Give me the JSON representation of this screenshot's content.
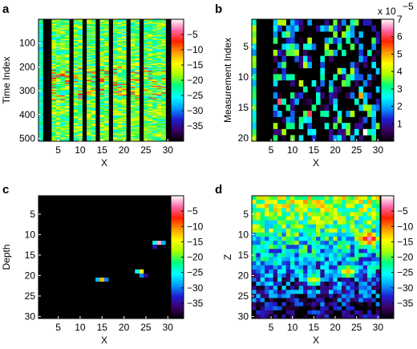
{
  "colormap": {
    "name": "jet-like with black low end",
    "stops": [
      "#000000",
      "#3d0066",
      "#1e1ed2",
      "#00a0ff",
      "#00ffff",
      "#00ff7f",
      "#a8ff00",
      "#ffff00",
      "#ff9a00",
      "#ff2000",
      "#ff66aa",
      "#ffffff"
    ]
  },
  "chart_data": [
    {
      "type": "heatmap",
      "panel": "a",
      "xlabel": "X",
      "ylabel": "Time Index",
      "xlim": [
        0.5,
        30.5
      ],
      "ylim": [
        0,
        512
      ],
      "x_ticks": [
        5,
        10,
        15,
        20,
        25,
        30
      ],
      "y_ticks": [
        100,
        200,
        300,
        400,
        500
      ],
      "colorbar": {
        "ticks": [
          -5,
          -10,
          -15,
          -20,
          -25,
          -30,
          -35
        ],
        "range": [
          -40,
          0
        ],
        "multiplier": ""
      },
      "description_values": "Values near -40 (black) for columns 1-3; most other columns show streaked noise around -25 to -15 with bright streaks near rows 210-330",
      "active_columns": [
        1,
        4,
        5,
        6,
        7,
        9,
        10,
        12,
        13,
        15,
        16,
        18,
        19,
        20,
        22,
        23,
        25,
        26,
        27,
        28,
        29
      ]
    },
    {
      "type": "heatmap",
      "panel": "b",
      "xlabel": "X",
      "ylabel": "Measurement Index",
      "xlim": [
        0.5,
        30.5
      ],
      "ylim": [
        0.5,
        20.5
      ],
      "x_ticks": [
        5,
        10,
        15,
        20,
        25,
        30
      ],
      "y_ticks": [
        5,
        10,
        15,
        20
      ],
      "colorbar": {
        "ticks": [
          7,
          6,
          5,
          4,
          3,
          2,
          1
        ],
        "range": [
          0,
          7
        ],
        "multiplier": "x 10",
        "exponent": "−5"
      },
      "cells_note": "Sparse colored cells; mostly dark background",
      "highlighted_cells": [
        {
          "x": 7,
          "y": 14,
          "v": 6.2
        },
        {
          "x": 14,
          "y": 16,
          "v": 6.0
        },
        {
          "x": 27,
          "y": 19,
          "v": 7.0
        },
        {
          "x": 26,
          "y": 13,
          "v": 5.0
        }
      ]
    },
    {
      "type": "heatmap",
      "panel": "c",
      "xlabel": "X",
      "ylabel": "Depth",
      "xlim": [
        0.5,
        30.5
      ],
      "ylim": [
        0.5,
        30.5
      ],
      "x_ticks": [
        5,
        10,
        15,
        20,
        25,
        30
      ],
      "y_ticks": [
        5,
        10,
        15,
        20,
        25,
        30
      ],
      "colorbar": {
        "ticks": [
          -5,
          -10,
          -15,
          -20,
          -25,
          -30,
          -35
        ],
        "range": [
          -40,
          0
        ],
        "multiplier": ""
      },
      "cells": [
        {
          "x": 27,
          "y": 12,
          "v": -25
        },
        {
          "x": 28,
          "y": 12,
          "v": -2
        },
        {
          "x": 29,
          "y": 12,
          "v": -28
        },
        {
          "x": 27,
          "y": 13,
          "v": -34
        },
        {
          "x": 23,
          "y": 19,
          "v": -25
        },
        {
          "x": 24,
          "y": 19,
          "v": -15
        },
        {
          "x": 24,
          "y": 20,
          "v": -30
        },
        {
          "x": 25,
          "y": 20,
          "v": -35
        },
        {
          "x": 14,
          "y": 21,
          "v": -28
        },
        {
          "x": 15,
          "y": 21,
          "v": -12
        },
        {
          "x": 16,
          "y": 21,
          "v": -30
        }
      ]
    },
    {
      "type": "heatmap",
      "panel": "d",
      "xlabel": "X",
      "ylabel": "Z",
      "xlim": [
        0.5,
        30.5
      ],
      "ylim": [
        0.5,
        30.5
      ],
      "x_ticks": [
        5,
        10,
        15,
        20,
        25,
        30
      ],
      "y_ticks": [
        5,
        10,
        15,
        20,
        25,
        30
      ],
      "colorbar": {
        "ticks": [
          -5,
          -10,
          -15,
          -20,
          -25,
          -30,
          -35
        ],
        "range": [
          -40,
          0
        ],
        "multiplier": ""
      },
      "hotspots": [
        {
          "x": 28,
          "y": 11,
          "v": -3
        },
        {
          "x": 27,
          "y": 11,
          "v": -8
        },
        {
          "x": 23,
          "y": 19,
          "v": -12
        },
        {
          "x": 15,
          "y": 21,
          "v": -14
        }
      ],
      "cells_note": "Noisy field, values near -20 at top decreasing to near -40 at bottom"
    }
  ]
}
